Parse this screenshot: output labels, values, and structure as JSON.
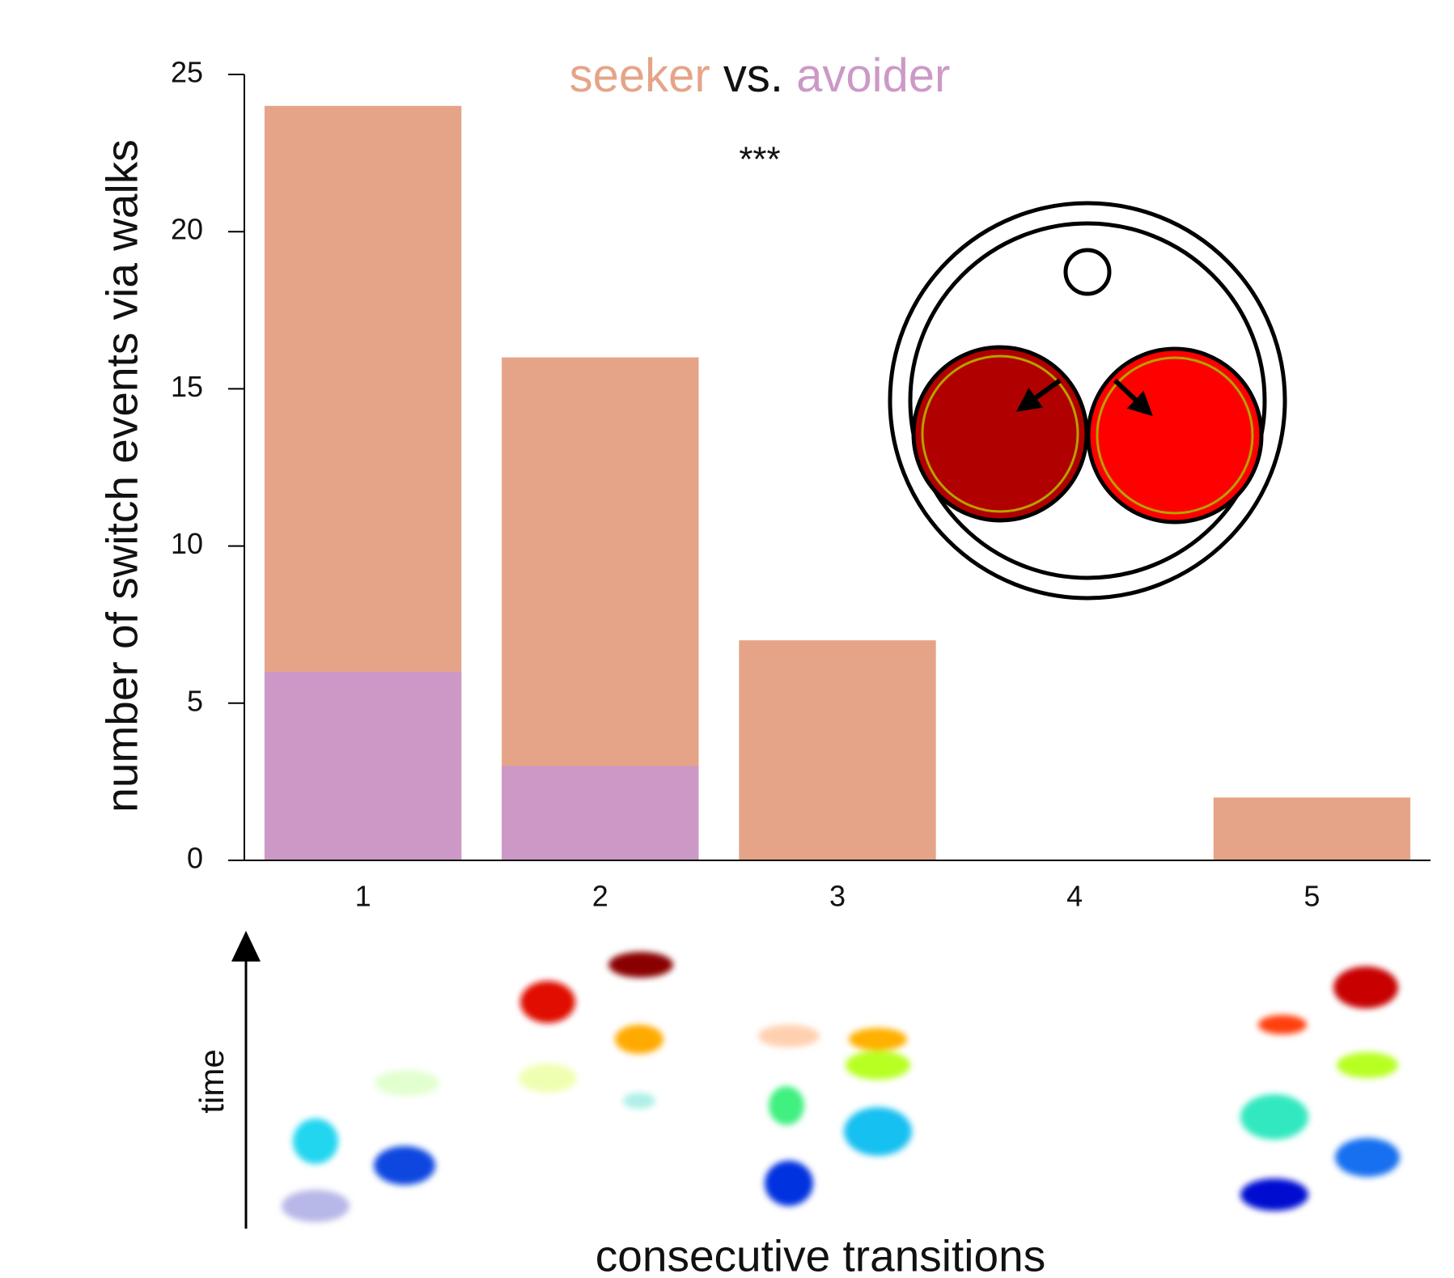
{
  "chart_data": {
    "type": "bar",
    "title_joiner": "vs.",
    "annotation": "***",
    "y_label": "number of switch events via walks",
    "x_label": "consecutive transitions",
    "time_label": "time",
    "categories": [
      "1",
      "2",
      "3",
      "4",
      "5"
    ],
    "series": [
      {
        "name": "seeker",
        "color": "#e5a488",
        "values": [
          24,
          16,
          7,
          0,
          2
        ]
      },
      {
        "name": "avoider",
        "color": "#cc99c7",
        "values": [
          6,
          3,
          0,
          0,
          0
        ]
      }
    ],
    "ylim": [
      0,
      25
    ],
    "yticks": [
      0,
      5,
      10,
      15,
      20,
      25
    ],
    "grid": false
  }
}
